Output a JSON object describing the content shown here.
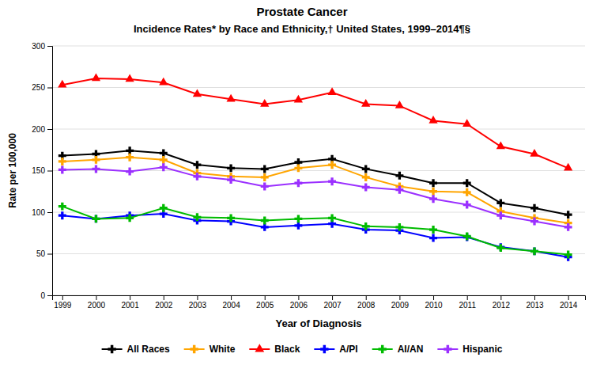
{
  "chart_data": {
    "type": "line",
    "title": "Prostate Cancer",
    "subtitle": "Incidence Rates* by Race and Ethnicity,† United States, 1999–2014¶§",
    "xlabel": "Year of Diagnosis",
    "ylabel": "Rate per 100,000",
    "x": [
      1999,
      2000,
      2001,
      2002,
      2003,
      2004,
      2005,
      2006,
      2007,
      2008,
      2009,
      2010,
      2011,
      2012,
      2013,
      2014
    ],
    "series": [
      {
        "name": "All Races",
        "color": "#000000",
        "marker": "plus",
        "values": [
          168,
          170,
          174,
          171,
          157,
          153,
          152,
          160,
          164,
          152,
          144,
          135,
          135,
          111,
          105,
          97
        ]
      },
      {
        "name": "White",
        "color": "#FFA500",
        "marker": "plus",
        "values": [
          161,
          163,
          166,
          163,
          147,
          143,
          142,
          153,
          157,
          142,
          131,
          125,
          124,
          101,
          93,
          87
        ]
      },
      {
        "name": "Black",
        "color": "#FF0000",
        "marker": "triangle",
        "values": [
          253,
          261,
          260,
          256,
          242,
          236,
          230,
          235,
          244,
          230,
          228,
          210,
          206,
          179,
          170,
          153
        ]
      },
      {
        "name": "A/PI",
        "color": "#0000FF",
        "marker": "plus",
        "values": [
          96,
          92,
          96,
          98,
          90,
          89,
          82,
          84,
          86,
          79,
          78,
          69,
          70,
          58,
          53,
          46
        ]
      },
      {
        "name": "AI/AN",
        "color": "#00BB00",
        "marker": "plus",
        "values": [
          107,
          92,
          93,
          105,
          94,
          93,
          90,
          92,
          93,
          83,
          82,
          79,
          71,
          57,
          53,
          49
        ]
      },
      {
        "name": "Hispanic",
        "color": "#9B30FF",
        "marker": "plus",
        "values": [
          151,
          152,
          149,
          154,
          143,
          139,
          131,
          135,
          137,
          130,
          127,
          116,
          109,
          96,
          89,
          82
        ]
      }
    ],
    "xlim": [
      1998.7,
      2014.5
    ],
    "xticks": [
      1999,
      2000,
      2001,
      2002,
      2003,
      2004,
      2005,
      2006,
      2007,
      2008,
      2009,
      2010,
      2011,
      2012,
      2013,
      2014
    ],
    "ylim": [
      0,
      300
    ],
    "yticks": [
      0,
      50,
      100,
      150,
      200,
      250,
      300
    ],
    "grid": true,
    "legend": "bottom"
  }
}
